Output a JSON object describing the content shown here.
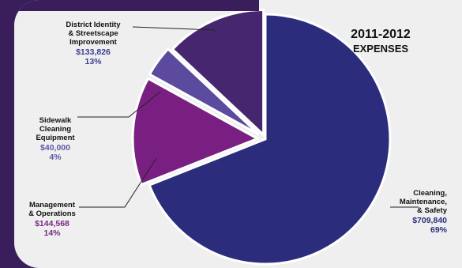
{
  "chart_data": {
    "type": "pie",
    "title": "2011-2012",
    "subtitle": "EXPENSES",
    "slices": [
      {
        "label_lines": [
          "Cleaning,",
          "Maintenance,",
          "& Safety"
        ],
        "amount": "$709,840",
        "percent_text": "69%",
        "value": 69,
        "color": "#2b2d7c",
        "value_color": "#2b2d7c"
      },
      {
        "label_lines": [
          "Management",
          "& Operations"
        ],
        "amount": "$144,568",
        "percent_text": "14%",
        "value": 14,
        "color": "#7a1f82",
        "value_color": "#7a2a85"
      },
      {
        "label_lines": [
          "Sidewalk",
          "Cleaning",
          "Equipment"
        ],
        "amount": "$40,000",
        "percent_text": "4%",
        "value": 4,
        "color": "#5b4a9e",
        "value_color": "#5f57a8"
      },
      {
        "label_lines": [
          "District Identity",
          "& Streetscape",
          "Improvement"
        ],
        "amount": "$133,826",
        "percent_text": "13%",
        "value": 13,
        "color": "#46276f",
        "value_color": "#3b3f94"
      }
    ]
  }
}
